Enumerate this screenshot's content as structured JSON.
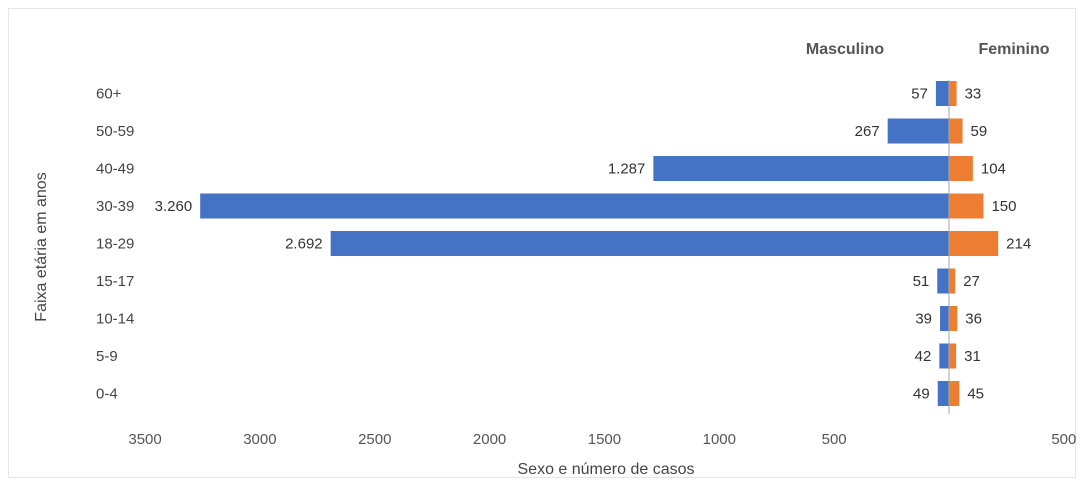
{
  "chart_data": {
    "type": "bar",
    "orientation": "horizontal",
    "layout": "population-pyramid",
    "categories": [
      "60+",
      "50-59",
      "40-49",
      "30-39",
      "18-29",
      "15-17",
      "10-14",
      "5-9",
      "0-4"
    ],
    "series": [
      {
        "name": "Masculino",
        "color": "#4472C4",
        "side": "left",
        "values": [
          57,
          267,
          1287,
          3260,
          2692,
          51,
          39,
          42,
          49
        ],
        "value_labels": [
          "57",
          "267",
          "1.287",
          "3.260",
          "2.692",
          "51",
          "39",
          "42",
          "49"
        ]
      },
      {
        "name": "Feminino",
        "color": "#ED7D31",
        "side": "right",
        "values": [
          33,
          59,
          104,
          150,
          214,
          27,
          36,
          31,
          45
        ],
        "value_labels": [
          "33",
          "59",
          "104",
          "150",
          "214",
          "27",
          "36",
          "31",
          "45"
        ]
      }
    ],
    "x_ticks": [
      {
        "value": -3500,
        "label": "3500"
      },
      {
        "value": -3000,
        "label": "3000"
      },
      {
        "value": -2500,
        "label": "2500"
      },
      {
        "value": -2000,
        "label": "2000"
      },
      {
        "value": -1500,
        "label": "1500"
      },
      {
        "value": -1000,
        "label": "1000"
      },
      {
        "value": -500,
        "label": "500"
      },
      {
        "value": 500,
        "label": "500"
      }
    ],
    "xlim": [
      -3500,
      500
    ],
    "xlabel": "Sexo e número de casos",
    "ylabel": "Faixa etária em anos",
    "grid": false,
    "legend_position": "top-right"
  }
}
